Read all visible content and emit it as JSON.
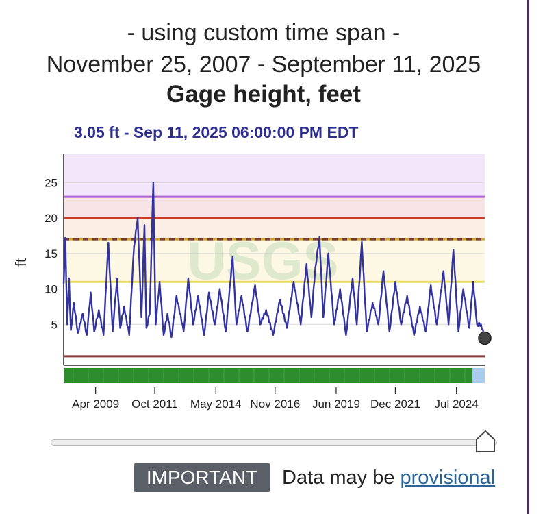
{
  "header": {
    "line1": "- using custom time span -",
    "line2": "November 25, 2007 - September 11, 2025",
    "title": "Gage height, feet"
  },
  "latest_reading": "3.05 ft - Sep 11, 2025 06:00:00 PM EDT",
  "watermark_text": "USGS",
  "footer": {
    "badge": "IMPORTANT",
    "text": "Data may be ",
    "link": "provisional"
  },
  "colors": {
    "series": "#3333a0",
    "qualifier_bar": "#2e8b2e",
    "provisional_bar": "#a8ccf0",
    "major_flood": "#b05fd6",
    "moderate_flood": "#d03a2a",
    "flood_stage": "#c9a82a",
    "action_stage": "#e9dc6a",
    "low_line": "#8a3a3a"
  },
  "chart_data": {
    "type": "line",
    "ylabel": "ft",
    "xlabel": "",
    "ylim": [
      0,
      29
    ],
    "yticks": [
      5,
      10,
      15,
      20,
      25
    ],
    "xlim": [
      "2007-11-25",
      "2025-09-11"
    ],
    "xticks": [
      {
        "date": "2009-04-01",
        "label": "Apr 2009"
      },
      {
        "date": "2011-10-01",
        "label": "Oct 2011"
      },
      {
        "date": "2014-05-01",
        "label": "May 2014"
      },
      {
        "date": "2016-11-01",
        "label": "Nov 2016"
      },
      {
        "date": "2019-06-01",
        "label": "Jun 2019"
      },
      {
        "date": "2021-12-01",
        "label": "Dec 2021"
      },
      {
        "date": "2024-07-01",
        "label": "Jul 2024"
      }
    ],
    "thresholds": [
      {
        "value": 23,
        "style": "solid",
        "color_key": "major_flood"
      },
      {
        "value": 20,
        "style": "solid",
        "color_key": "moderate_flood"
      },
      {
        "value": 17,
        "style": "dashed",
        "color_key": "flood_stage"
      },
      {
        "value": 11,
        "style": "solid",
        "color_key": "action_stage"
      },
      {
        "value": 0.5,
        "style": "solid",
        "color_key": "low_line"
      }
    ],
    "last_point": {
      "date": "2025-09-11",
      "value": 3.05
    },
    "series": [
      {
        "x": [
          "2007-11-25",
          "2007-12-20",
          "2008-01-20",
          "2008-02-15",
          "2008-03-15",
          "2008-05-01",
          "2008-07-01",
          "2008-09-15",
          "2008-11-15",
          "2009-01-15",
          "2009-03-10",
          "2009-05-20",
          "2009-08-01",
          "2009-10-15",
          "2009-12-20",
          "2010-02-25",
          "2010-04-15",
          "2010-06-15",
          "2010-09-01",
          "2010-11-15",
          "2011-01-10",
          "2011-03-10",
          "2011-04-25",
          "2011-05-25",
          "2011-07-15",
          "2011-09-08",
          "2011-10-15",
          "2011-12-15",
          "2012-02-15",
          "2012-04-15",
          "2012-06-15",
          "2012-09-01",
          "2012-12-20",
          "2013-03-01",
          "2013-05-15",
          "2013-08-01",
          "2013-11-01",
          "2014-01-15",
          "2014-04-15",
          "2014-07-01",
          "2014-10-01",
          "2015-01-15",
          "2015-03-15",
          "2015-06-01",
          "2015-09-01",
          "2015-12-28",
          "2016-03-15",
          "2016-06-15",
          "2016-10-01",
          "2017-01-15",
          "2017-05-01",
          "2017-08-15",
          "2017-12-01",
          "2018-03-01",
          "2018-05-15",
          "2018-07-15",
          "2018-09-17",
          "2018-11-15",
          "2019-02-01",
          "2019-05-01",
          "2019-08-01",
          "2019-11-01",
          "2020-02-10",
          "2020-04-15",
          "2020-07-01",
          "2020-09-15",
          "2020-12-15",
          "2021-03-15",
          "2021-06-01",
          "2021-09-01",
          "2021-12-01",
          "2022-03-01",
          "2022-06-01",
          "2022-09-15",
          "2022-12-15",
          "2023-03-15",
          "2023-06-01",
          "2023-09-01",
          "2023-12-15",
          "2024-03-01",
          "2024-05-15",
          "2024-08-01",
          "2024-10-15",
          "2025-01-15",
          "2025-03-15",
          "2025-05-15",
          "2025-07-15",
          "2025-09-11"
        ],
        "values": [
          10.8,
          17.2,
          5.0,
          11.5,
          4.2,
          8.0,
          3.8,
          6.5,
          3.5,
          9.5,
          4.0,
          7.0,
          3.5,
          16.5,
          4.0,
          11.5,
          4.5,
          7.5,
          3.5,
          16.0,
          20.0,
          6.0,
          19.0,
          4.5,
          6.5,
          25.0,
          5.0,
          11.0,
          3.5,
          6.5,
          3.2,
          9.0,
          4.0,
          11.5,
          5.0,
          9.0,
          3.5,
          9.5,
          5.0,
          10.0,
          4.0,
          14.5,
          5.0,
          9.0,
          4.0,
          10.5,
          5.0,
          7.0,
          3.5,
          8.5,
          4.5,
          11.0,
          5.0,
          13.5,
          6.0,
          13.0,
          17.3,
          6.0,
          15.0,
          5.0,
          10.0,
          3.5,
          11.5,
          5.0,
          16.6,
          4.0,
          8.0,
          5.0,
          12.5,
          4.0,
          11.0,
          5.0,
          9.0,
          3.5,
          7.5,
          4.0,
          10.5,
          5.0,
          12.5,
          5.0,
          15.5,
          4.0,
          10.0,
          4.5,
          11.0,
          5.0,
          5.0,
          3.05
        ]
      }
    ]
  }
}
